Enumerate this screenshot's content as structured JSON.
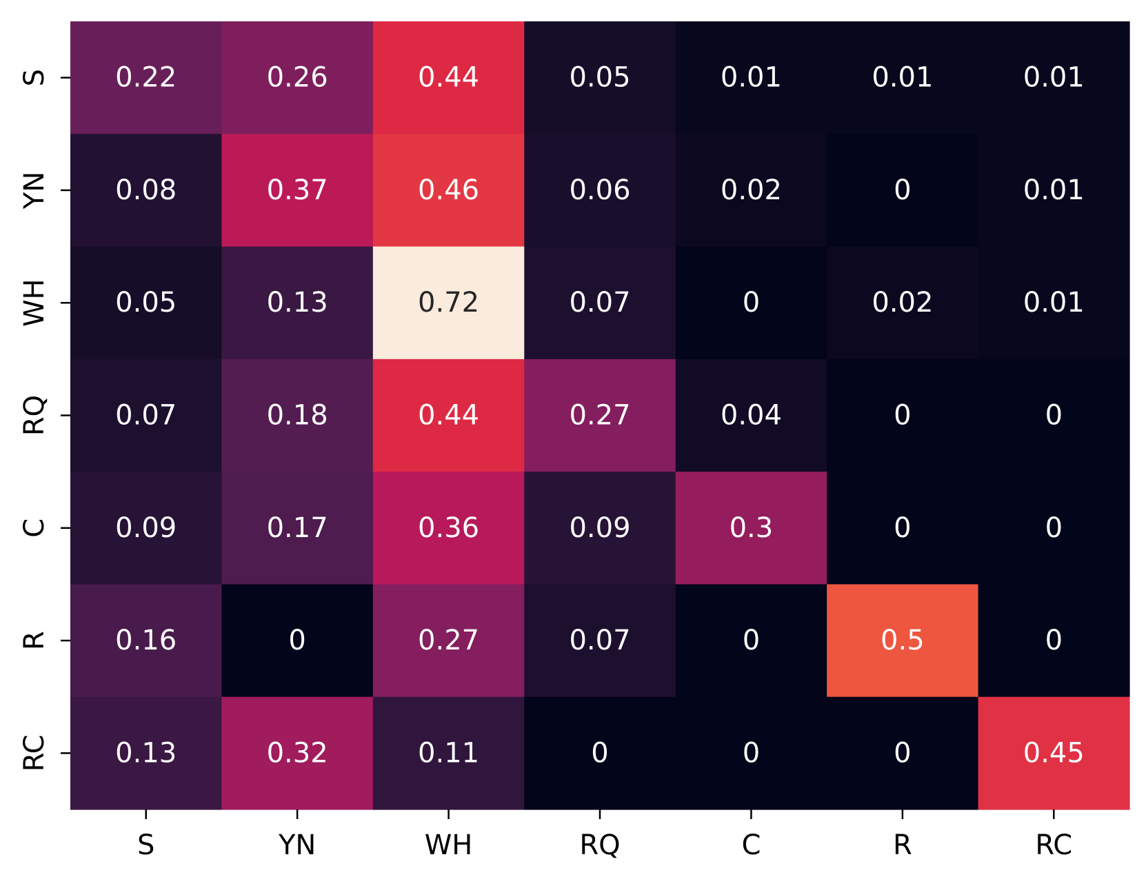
{
  "chart_data": {
    "type": "heatmap",
    "title": "",
    "xlabel": "",
    "ylabel": "",
    "x_categories": [
      "S",
      "YN",
      "WH",
      "RQ",
      "C",
      "R",
      "RC"
    ],
    "y_categories": [
      "S",
      "YN",
      "WH",
      "RQ",
      "C",
      "R",
      "RC"
    ],
    "values": [
      [
        0.22,
        0.26,
        0.44,
        0.05,
        0.01,
        0.01,
        0.01
      ],
      [
        0.08,
        0.37,
        0.46,
        0.06,
        0.02,
        0,
        0.01
      ],
      [
        0.05,
        0.13,
        0.72,
        0.07,
        0,
        0.02,
        0.01
      ],
      [
        0.07,
        0.18,
        0.44,
        0.27,
        0.04,
        0,
        0
      ],
      [
        0.09,
        0.17,
        0.36,
        0.09,
        0.3,
        0,
        0
      ],
      [
        0.16,
        0,
        0.27,
        0.07,
        0,
        0.5,
        0
      ],
      [
        0.13,
        0.32,
        0.11,
        0,
        0,
        0,
        0.45
      ]
    ],
    "colormap": "rocket",
    "value_range": [
      0,
      0.72
    ],
    "colorbar": false,
    "grid": false,
    "legend": "none"
  }
}
